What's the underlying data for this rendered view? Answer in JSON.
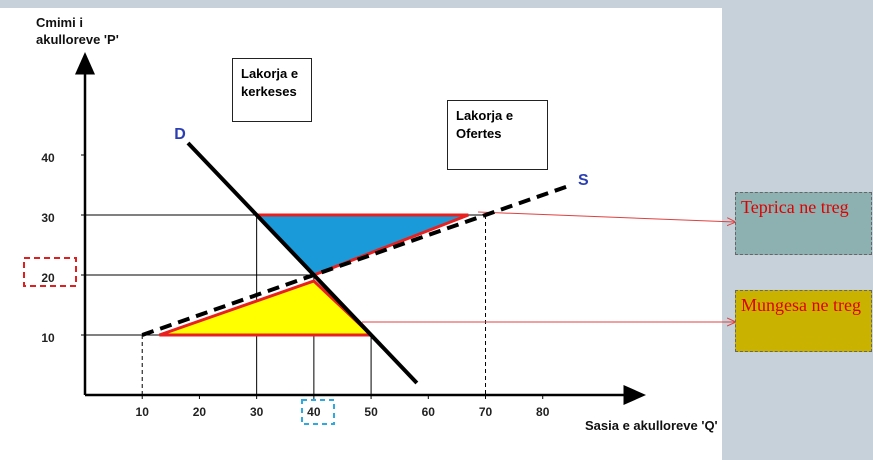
{
  "chart_data": {
    "type": "line",
    "y_label": "Cmimi i akulloreve 'P'",
    "x_label": "Sasia e akulloreve 'Q'",
    "xlim": [
      0,
      97
    ],
    "ylim": [
      0,
      55
    ],
    "xticks": [
      10,
      20,
      30,
      40,
      50,
      60,
      70,
      80
    ],
    "yticks": [
      10,
      20,
      30,
      40
    ],
    "series": [
      {
        "name": "D",
        "color": "#000000",
        "dashed": false,
        "x": [
          18,
          58
        ],
        "values": [
          42,
          2
        ]
      },
      {
        "name": "S",
        "color": "#000000",
        "dashed": true,
        "x": [
          10,
          85
        ],
        "values": [
          10,
          35
        ]
      }
    ],
    "annotations": [
      "Lakorja e kerkeses",
      "Lakorja e Ofertes"
    ],
    "regions": [
      {
        "label": "Teprica ne treg",
        "color": "#1a9ad8",
        "x": [
          30,
          67,
          40
        ],
        "y": [
          30,
          30,
          20
        ]
      },
      {
        "label": "Mungesa ne treg",
        "color": "#ffff00",
        "x": [
          13,
          50,
          40
        ],
        "y": [
          10,
          10,
          19
        ]
      }
    ],
    "guides": [
      {
        "x": 30,
        "y": 30,
        "dashed": false
      },
      {
        "x": 40,
        "y": 20,
        "dashed": false
      },
      {
        "x": 50,
        "y": 10,
        "dashed": false
      },
      {
        "x": 70,
        "y": 30,
        "dashed": true
      },
      {
        "x": 10,
        "y": 10,
        "dashed": true
      }
    ]
  }
}
